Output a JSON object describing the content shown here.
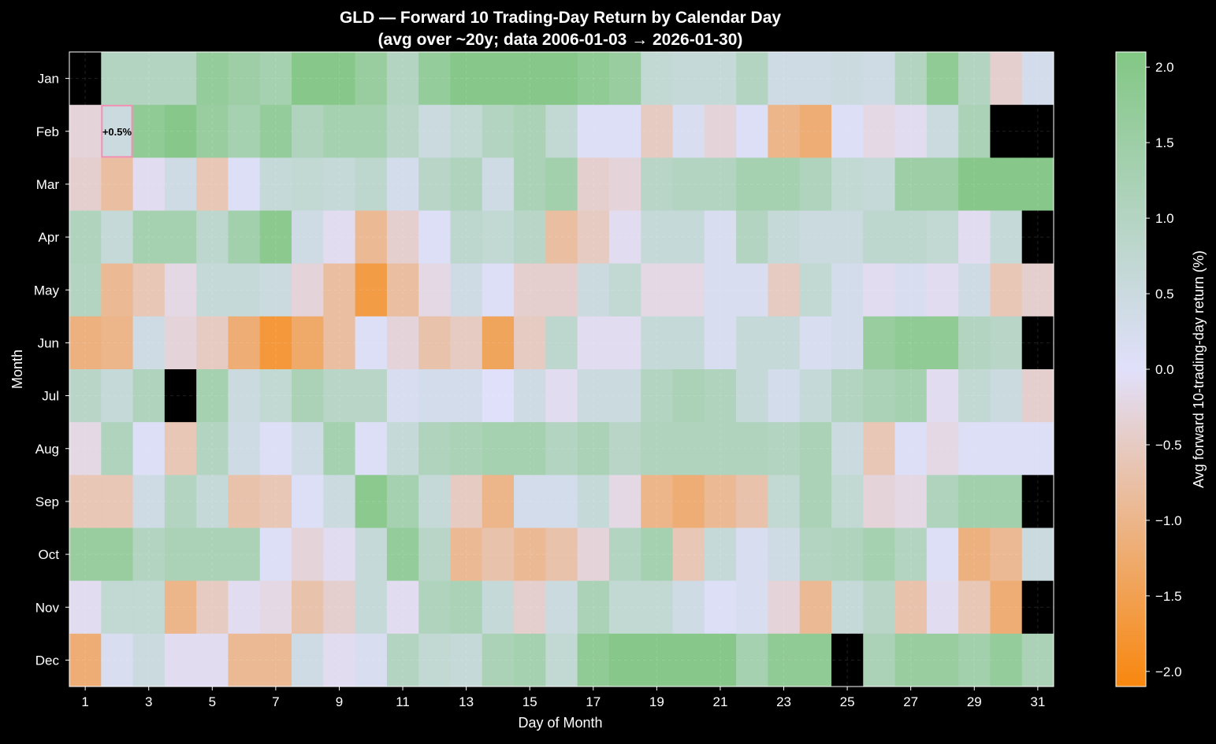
{
  "chart_data": {
    "type": "heatmap",
    "title": "GLD — Forward 10 Trading-Day Return by Calendar Day",
    "subtitle": "(avg over ~20y; data 2006-01-03 → 2026-01-30)",
    "xlabel": "Day of Month",
    "ylabel": "Month",
    "colorbar_label": "Avg forward 10-trading-day return (%)",
    "x_tick_labels": [
      "1",
      "3",
      "5",
      "7",
      "9",
      "11",
      "13",
      "15",
      "17",
      "19",
      "21",
      "23",
      "25",
      "27",
      "29",
      "31"
    ],
    "y_labels": [
      "Jan",
      "Feb",
      "Mar",
      "Apr",
      "May",
      "Jun",
      "Jul",
      "Aug",
      "Sep",
      "Oct",
      "Nov",
      "Dec"
    ],
    "days": [
      1,
      2,
      3,
      4,
      5,
      6,
      7,
      8,
      9,
      10,
      11,
      12,
      13,
      14,
      15,
      16,
      17,
      18,
      19,
      20,
      21,
      22,
      23,
      24,
      25,
      26,
      27,
      28,
      29,
      30,
      31
    ],
    "colorbar_range": [
      -2.1,
      2.1
    ],
    "colorbar_ticks": [
      2.0,
      1.5,
      1.0,
      0.5,
      0.0,
      -0.5,
      -1.0,
      -1.5,
      -2.0
    ],
    "colorbar_tick_labels": [
      "2.0",
      "1.5",
      "1.0",
      "0.5",
      "0.0",
      "−0.5",
      "−1.0",
      "−1.5",
      "−2.0"
    ],
    "colormap": {
      "negative": "#f8870e",
      "zero": "#e1e0fb",
      "positive": "#82c784"
    },
    "missing_color": "#000000",
    "grid": true,
    "highlight": {
      "month": "Feb",
      "day": 2,
      "label": "+0.5%",
      "border_color": "#f48fb1"
    },
    "values": [
      [
        null,
        1.0,
        1.0,
        1.0,
        1.7,
        1.5,
        1.3,
        2.0,
        2.0,
        1.6,
        1.0,
        1.7,
        2.0,
        2.0,
        2.0,
        2.0,
        1.8,
        1.6,
        0.7,
        0.6,
        0.6,
        1.0,
        0.4,
        0.4,
        0.5,
        0.4,
        1.0,
        1.8,
        1.0,
        -0.4,
        0.3
      ],
      [
        -0.3,
        0.5,
        1.8,
        2.0,
        1.6,
        1.3,
        1.7,
        1.1,
        1.3,
        1.3,
        0.9,
        0.5,
        0.7,
        1.0,
        1.2,
        0.7,
        0.1,
        0.1,
        -0.5,
        0.2,
        -0.3,
        0.1,
        -1.0,
        -1.2,
        0.1,
        -0.2,
        -0.1,
        0.5,
        1.2,
        null,
        null
      ],
      [
        -0.4,
        -0.8,
        -0.1,
        0.4,
        -0.6,
        0.1,
        0.6,
        0.7,
        0.6,
        0.8,
        0.3,
        0.9,
        1.1,
        0.4,
        1.2,
        1.4,
        -0.4,
        -0.3,
        0.9,
        1.0,
        1.0,
        1.3,
        1.3,
        1.1,
        0.7,
        0.6,
        1.5,
        1.5,
        2.0,
        2.0,
        2.0
      ],
      [
        1.1,
        0.6,
        1.3,
        1.3,
        0.8,
        1.4,
        1.9,
        0.4,
        -0.1,
        -0.9,
        -0.4,
        0.1,
        0.8,
        0.7,
        0.9,
        -0.8,
        -0.5,
        -0.1,
        0.6,
        0.6,
        0.2,
        1.0,
        0.6,
        0.5,
        0.5,
        0.8,
        0.8,
        0.7,
        -0.1,
        0.6,
        null
      ],
      [
        1.0,
        -0.9,
        -0.6,
        -0.2,
        0.6,
        0.6,
        0.5,
        -0.3,
        -0.8,
        -1.6,
        -0.8,
        -0.2,
        0.4,
        0.1,
        -0.4,
        -0.4,
        0.5,
        0.7,
        -0.2,
        -0.2,
        0.2,
        0.2,
        -0.5,
        0.7,
        0.3,
        -0.1,
        0.2,
        -0.1,
        0.4,
        -0.6,
        -0.4
      ],
      [
        -1.1,
        -1.0,
        0.4,
        -0.3,
        -0.5,
        -1.2,
        -1.7,
        -1.3,
        -0.8,
        0.1,
        -0.3,
        -0.7,
        -0.5,
        -1.4,
        -0.5,
        0.8,
        -0.1,
        -0.1,
        0.6,
        0.6,
        0.2,
        0.6,
        0.6,
        0.2,
        0.3,
        1.6,
        1.8,
        1.8,
        1.0,
        0.9,
        null
      ],
      [
        0.9,
        0.6,
        1.1,
        null,
        1.3,
        0.5,
        0.7,
        1.2,
        0.9,
        0.9,
        0.2,
        0.3,
        0.3,
        0.0,
        0.4,
        -0.1,
        0.5,
        0.5,
        1.0,
        1.2,
        1.1,
        0.6,
        0.3,
        0.6,
        1.0,
        1.2,
        1.3,
        -0.1,
        0.7,
        0.5,
        -0.4
      ],
      [
        -0.2,
        1.1,
        0.1,
        -0.6,
        1.0,
        0.4,
        0.1,
        0.4,
        1.3,
        0.1,
        0.6,
        1.1,
        1.2,
        1.3,
        1.3,
        1.0,
        1.2,
        0.9,
        1.1,
        1.1,
        1.1,
        1.1,
        1.0,
        1.2,
        0.5,
        -0.6,
        0.1,
        -0.2,
        0.1,
        0.1,
        0.1
      ],
      [
        -0.6,
        -0.6,
        0.4,
        1.0,
        0.6,
        -0.7,
        -0.6,
        0.1,
        0.5,
        1.9,
        1.3,
        0.6,
        -0.5,
        -1.0,
        0.3,
        0.3,
        0.6,
        -0.2,
        -1.0,
        -1.2,
        -0.9,
        -0.7,
        0.7,
        1.2,
        0.7,
        -0.3,
        -0.2,
        1.1,
        1.4,
        1.4,
        null
      ],
      [
        1.6,
        1.6,
        1.0,
        1.2,
        1.2,
        1.2,
        0.1,
        -0.3,
        -0.1,
        0.6,
        1.7,
        0.9,
        -0.9,
        -0.7,
        -0.9,
        -0.7,
        -0.3,
        1.0,
        1.3,
        -0.6,
        0.6,
        0.2,
        0.4,
        1.0,
        1.1,
        1.3,
        1.0,
        0.1,
        -1.1,
        -0.9,
        0.5
      ],
      [
        -0.1,
        0.7,
        0.7,
        -1.0,
        -0.5,
        -0.1,
        -0.2,
        -0.7,
        -0.4,
        0.6,
        -0.1,
        1.1,
        1.2,
        0.6,
        -0.4,
        0.5,
        1.2,
        0.7,
        0.7,
        0.4,
        0.1,
        0.2,
        -0.3,
        -0.9,
        0.6,
        0.9,
        -0.7,
        -0.1,
        -0.6,
        -1.2,
        null
      ],
      [
        -1.2,
        0.2,
        0.5,
        -0.1,
        -0.1,
        -0.9,
        -0.9,
        0.4,
        -0.1,
        0.2,
        1.0,
        0.7,
        0.6,
        1.2,
        1.3,
        0.7,
        1.8,
        2.0,
        2.0,
        2.0,
        2.0,
        1.3,
        1.8,
        1.8,
        null,
        1.2,
        1.6,
        1.6,
        1.4,
        1.7,
        1.2
      ]
    ]
  }
}
